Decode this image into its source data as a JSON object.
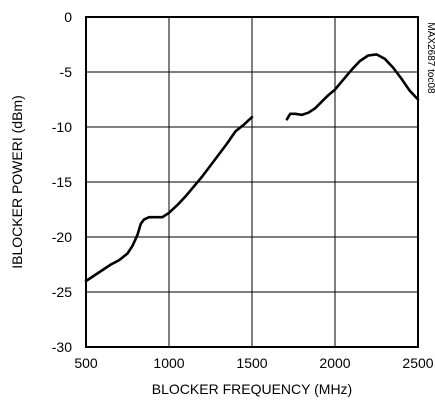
{
  "chart_data": {
    "type": "line",
    "xlabel": "BLOCKER FREQUENCY (MHz)",
    "ylabel": "IBLOCKER POWERI (dBm)",
    "side_label": "MAX2687 toc08",
    "xlim": [
      500,
      2500
    ],
    "ylim": [
      -30,
      0
    ],
    "x_ticks": [
      500,
      1000,
      1500,
      2000,
      2500
    ],
    "y_ticks": [
      0,
      -5,
      -10,
      -15,
      -20,
      -25,
      -30
    ],
    "x_tick_labels": [
      "500",
      "1000",
      "1500",
      "2000",
      "2500"
    ],
    "y_tick_labels": [
      "0",
      "-5",
      "-10",
      "-15",
      "-20",
      "-25",
      "-30"
    ],
    "grid": true,
    "series": [
      {
        "segments": [
          {
            "x": [
              500,
              550,
              600,
              650,
              700,
              750,
              780,
              810,
              830,
              850,
              880,
              920,
              960,
              1000,
              1050,
              1100,
              1150,
              1200,
              1250,
              1300,
              1350,
              1400,
              1450,
              1500
            ],
            "y": [
              -24.0,
              -23.5,
              -23.0,
              -22.5,
              -22.1,
              -21.5,
              -20.8,
              -19.8,
              -18.8,
              -18.4,
              -18.2,
              -18.2,
              -18.2,
              -17.8,
              -17.1,
              -16.3,
              -15.4,
              -14.5,
              -13.5,
              -12.5,
              -11.5,
              -10.4,
              -9.8,
              -9.1
            ]
          },
          {
            "x": [
              1710,
              1730,
              1760,
              1800,
              1840,
              1880,
              1920,
              1960,
              2000,
              2050,
              2100,
              2150,
              2200,
              2250,
              2300,
              2350,
              2400,
              2450,
              2500
            ],
            "y": [
              -9.3,
              -8.8,
              -8.8,
              -8.9,
              -8.7,
              -8.3,
              -7.7,
              -7.1,
              -6.6,
              -5.7,
              -4.8,
              -4.0,
              -3.5,
              -3.4,
              -3.8,
              -4.6,
              -5.6,
              -6.7,
              -7.5
            ]
          }
        ]
      }
    ]
  }
}
